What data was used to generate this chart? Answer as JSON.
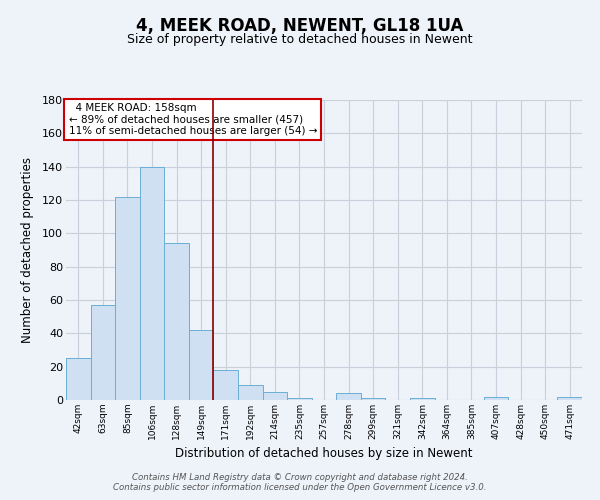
{
  "title": "4, MEEK ROAD, NEWENT, GL18 1UA",
  "subtitle": "Size of property relative to detached houses in Newent",
  "xlabel": "Distribution of detached houses by size in Newent",
  "ylabel": "Number of detached properties",
  "categories": [
    "42sqm",
    "63sqm",
    "85sqm",
    "106sqm",
    "128sqm",
    "149sqm",
    "171sqm",
    "192sqm",
    "214sqm",
    "235sqm",
    "257sqm",
    "278sqm",
    "299sqm",
    "321sqm",
    "342sqm",
    "364sqm",
    "385sqm",
    "407sqm",
    "428sqm",
    "450sqm",
    "471sqm"
  ],
  "values": [
    25,
    57,
    122,
    140,
    94,
    42,
    18,
    9,
    5,
    1,
    0,
    4,
    1,
    0,
    1,
    0,
    0,
    2,
    0,
    0,
    2
  ],
  "bar_color": "#cfe0f2",
  "bar_edge_color": "#6baed6",
  "ylim": [
    0,
    180
  ],
  "yticks": [
    0,
    20,
    40,
    60,
    80,
    100,
    120,
    140,
    160,
    180
  ],
  "vline_x": 5.5,
  "vline_color": "#8b0000",
  "annotation_title": "4 MEEK ROAD: 158sqm",
  "annotation_line1": "← 89% of detached houses are smaller (457)",
  "annotation_line2": "11% of semi-detached houses are larger (54) →",
  "annotation_box_color": "#ffffff",
  "annotation_box_edge": "#cc0000",
  "footer_line1": "Contains HM Land Registry data © Crown copyright and database right 2024.",
  "footer_line2": "Contains public sector information licensed under the Open Government Licence v3.0.",
  "background_color": "#eef2f9",
  "grid_color": "#c8d0dc",
  "title_fontsize": 12,
  "subtitle_fontsize": 9
}
